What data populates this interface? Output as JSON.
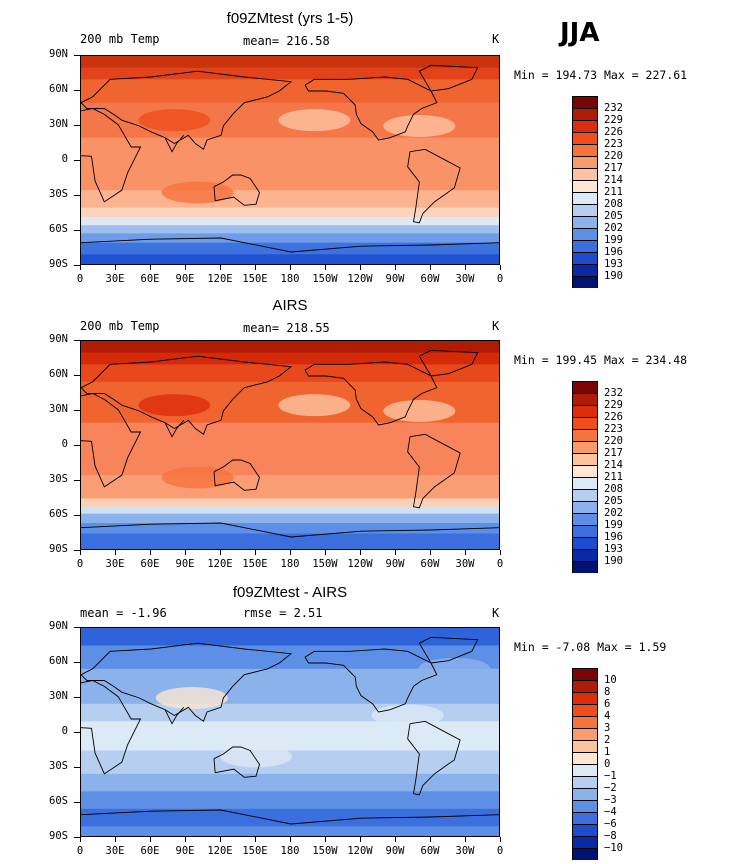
{
  "season": "JJA",
  "panels": [
    {
      "title": "f09ZMtest (yrs 1-5)",
      "left_label": "200 mb Temp",
      "center_label": "mean= 216.58",
      "right_label": "K",
      "minmax": "Min = 194.73 Max = 227.61",
      "colorbar_labels": [
        "232",
        "229",
        "226",
        "223",
        "220",
        "217",
        "214",
        "211",
        "208",
        "205",
        "202",
        "199",
        "196",
        "193",
        "190"
      ],
      "colorbar_colors": [
        "#7a0403",
        "#b01b05",
        "#db2d0b",
        "#ef4e1c",
        "#f7733d",
        "#fa9b6b",
        "#fcc3a0",
        "#fde6d2",
        "#dce9f6",
        "#b6cff0",
        "#8cb2ec",
        "#5e8fe6",
        "#3a6fdd",
        "#1d4ccf",
        "#0a2aa5",
        "#021270"
      ],
      "bands": [
        {
          "lat": 90,
          "color": "#c9330e"
        },
        {
          "lat": 80,
          "color": "#e2431a"
        },
        {
          "lat": 70,
          "color": "#f0652f"
        },
        {
          "lat": 50,
          "color": "#f4774a"
        },
        {
          "lat": 20,
          "color": "#f99267"
        },
        {
          "lat": -25,
          "color": "#fbb48f"
        },
        {
          "lat": -40,
          "color": "#fcd4bd"
        },
        {
          "lat": -48,
          "color": "#dfe8f5"
        },
        {
          "lat": -55,
          "color": "#9fc0ef"
        },
        {
          "lat": -62,
          "color": "#6f9be8"
        },
        {
          "lat": -70,
          "color": "#3e72de"
        },
        {
          "lat": -80,
          "color": "#1f52d2"
        },
        {
          "lat": -90,
          "color": "#1f52d2"
        }
      ]
    },
    {
      "title": "AIRS",
      "left_label": "200 mb Temp",
      "center_label": "mean= 218.55",
      "right_label": "K",
      "minmax": "Min = 199.45 Max = 234.48",
      "colorbar_labels": [
        "232",
        "229",
        "226",
        "223",
        "220",
        "217",
        "214",
        "211",
        "208",
        "205",
        "202",
        "199",
        "196",
        "193",
        "190"
      ],
      "colorbar_colors": [
        "#7a0403",
        "#b01b05",
        "#db2d0b",
        "#ef4e1c",
        "#f7733d",
        "#fa9b6b",
        "#fcc3a0",
        "#fde6d2",
        "#dce9f6",
        "#b6cff0",
        "#8cb2ec",
        "#5e8fe6",
        "#3a6fdd",
        "#1d4ccf",
        "#0a2aa5",
        "#021270"
      ],
      "bands": [
        {
          "lat": 90,
          "color": "#b01b05"
        },
        {
          "lat": 80,
          "color": "#d52a0a"
        },
        {
          "lat": 70,
          "color": "#e9481c"
        },
        {
          "lat": 55,
          "color": "#f0652f"
        },
        {
          "lat": 20,
          "color": "#f7845a"
        },
        {
          "lat": -25,
          "color": "#f99e74"
        },
        {
          "lat": -45,
          "color": "#fcd0b5"
        },
        {
          "lat": -52,
          "color": "#cfe0f4"
        },
        {
          "lat": -58,
          "color": "#8cb2ec"
        },
        {
          "lat": -66,
          "color": "#5e8fe6"
        },
        {
          "lat": -75,
          "color": "#3a6fdd"
        },
        {
          "lat": -90,
          "color": "#3a6fdd"
        }
      ]
    },
    {
      "title": "f09ZMtest - AIRS",
      "left_label": "mean = -1.96",
      "center_label": "rmse = 2.51",
      "right_label": "K",
      "minmax": "Min = -7.08 Max = 1.59",
      "colorbar_labels": [
        "10",
        "8",
        "6",
        "4",
        "3",
        "2",
        "1",
        "0",
        "−1",
        "−2",
        "−3",
        "−4",
        "−6",
        "−8",
        "−10"
      ],
      "colorbar_colors": [
        "#7a0403",
        "#b01b05",
        "#db2d0b",
        "#ef4e1c",
        "#f7733d",
        "#fa9b6b",
        "#fcc3a0",
        "#fde6d2",
        "#dce9f6",
        "#b6cff0",
        "#8cb2ec",
        "#5e8fe6",
        "#3a6fdd",
        "#1d4ccf",
        "#0a2aa5",
        "#021270"
      ],
      "bands": [
        {
          "lat": 90,
          "color": "#2f63da"
        },
        {
          "lat": 75,
          "color": "#5e8fe6"
        },
        {
          "lat": 55,
          "color": "#8cb2ec"
        },
        {
          "lat": 25,
          "color": "#b6cff0"
        },
        {
          "lat": 10,
          "color": "#dce9f6"
        },
        {
          "lat": -15,
          "color": "#b6cff0"
        },
        {
          "lat": -35,
          "color": "#8cb2ec"
        },
        {
          "lat": -50,
          "color": "#5e8fe6"
        },
        {
          "lat": -65,
          "color": "#3a6fdd"
        },
        {
          "lat": -80,
          "color": "#5e8fe6"
        },
        {
          "lat": -90,
          "color": "#5e8fe6"
        }
      ]
    }
  ],
  "lat_labels": [
    "90N",
    "60N",
    "30N",
    "0",
    "30S",
    "60S",
    "90S"
  ],
  "lon_labels": [
    "0",
    "30E",
    "60E",
    "90E",
    "120E",
    "150E",
    "180",
    "150W",
    "120W",
    "90W",
    "60W",
    "30W",
    "0"
  ],
  "chart_data": [
    {
      "type": "heatmap",
      "title": "f09ZMtest (yrs 1-5)",
      "field": "200 mb Temp",
      "units": "K",
      "mean": 216.58,
      "min": 194.73,
      "max": 227.61,
      "x": [
        "0",
        "30E",
        "60E",
        "90E",
        "120E",
        "150E",
        "180",
        "150W",
        "120W",
        "90W",
        "60W",
        "30W",
        "0"
      ],
      "y": [
        "90N",
        "60N",
        "30N",
        "0",
        "30S",
        "60S",
        "90S"
      ],
      "levels": [
        190,
        193,
        196,
        199,
        202,
        205,
        208,
        211,
        214,
        217,
        220,
        223,
        226,
        229,
        232
      ]
    },
    {
      "type": "heatmap",
      "title": "AIRS",
      "field": "200 mb Temp",
      "units": "K",
      "mean": 218.55,
      "min": 199.45,
      "max": 234.48,
      "x": [
        "0",
        "30E",
        "60E",
        "90E",
        "120E",
        "150E",
        "180",
        "150W",
        "120W",
        "90W",
        "60W",
        "30W",
        "0"
      ],
      "y": [
        "90N",
        "60N",
        "30N",
        "0",
        "30S",
        "60S",
        "90S"
      ],
      "levels": [
        190,
        193,
        196,
        199,
        202,
        205,
        208,
        211,
        214,
        217,
        220,
        223,
        226,
        229,
        232
      ]
    },
    {
      "type": "heatmap",
      "title": "f09ZMtest - AIRS",
      "units": "K",
      "mean": -1.96,
      "rmse": 2.51,
      "min": -7.08,
      "max": 1.59,
      "x": [
        "0",
        "30E",
        "60E",
        "90E",
        "120E",
        "150E",
        "180",
        "150W",
        "120W",
        "90W",
        "60W",
        "30W",
        "0"
      ],
      "y": [
        "90N",
        "60N",
        "30N",
        "0",
        "30S",
        "60S",
        "90S"
      ],
      "levels": [
        -10,
        -8,
        -6,
        -4,
        -3,
        -2,
        -1,
        0,
        1,
        2,
        3,
        4,
        6,
        8,
        10
      ]
    }
  ]
}
